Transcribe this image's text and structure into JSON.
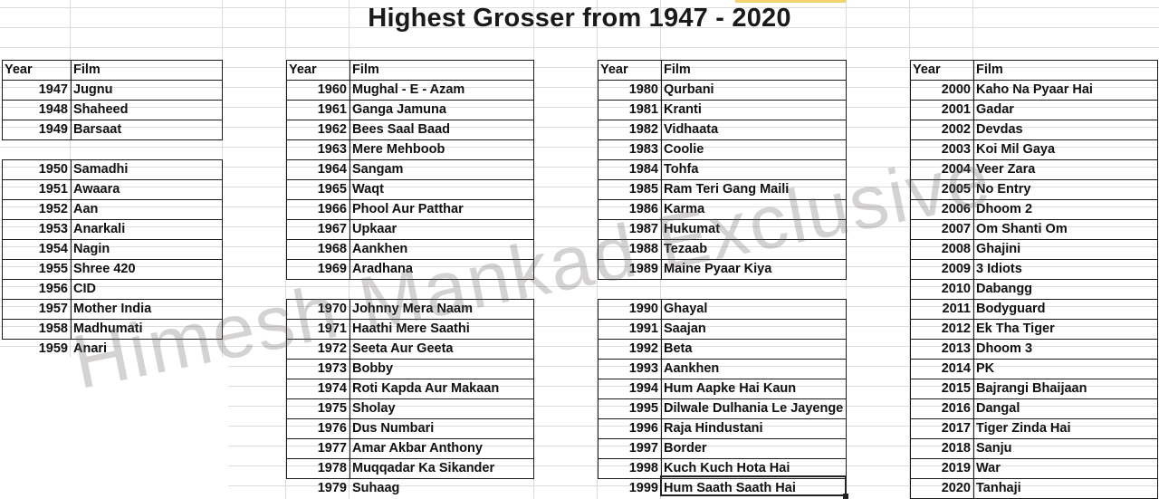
{
  "title": "Highest Grosser from 1947 - 2020",
  "watermark": "Himesh Mankad Exclusive",
  "columns": [
    {
      "header": {
        "year": "Year",
        "film": "Film"
      },
      "rows": [
        {
          "year": "1947",
          "film": "Jugnu"
        },
        {
          "year": "1948",
          "film": "Shaheed"
        },
        {
          "year": "1949",
          "film": "Barsaat"
        },
        {
          "year": "",
          "film": ""
        },
        {
          "year": "1950",
          "film": "Samadhi"
        },
        {
          "year": "1951",
          "film": "Awaara"
        },
        {
          "year": "1952",
          "film": "Aan"
        },
        {
          "year": "1953",
          "film": "Anarkali"
        },
        {
          "year": "1954",
          "film": "Nagin"
        },
        {
          "year": "1955",
          "film": "Shree 420"
        },
        {
          "year": "1956",
          "film": "CID"
        },
        {
          "year": "1957",
          "film": "Mother India"
        },
        {
          "year": "1958",
          "film": "Madhumati"
        },
        {
          "year": "1959",
          "film": "Anari"
        }
      ]
    },
    {
      "header": {
        "year": "Year",
        "film": "Film"
      },
      "rows": [
        {
          "year": "1960",
          "film": "Mughal - E - Azam"
        },
        {
          "year": "1961",
          "film": "Ganga Jamuna"
        },
        {
          "year": "1962",
          "film": "Bees Saal Baad"
        },
        {
          "year": "1963",
          "film": "Mere Mehboob"
        },
        {
          "year": "1964",
          "film": "Sangam"
        },
        {
          "year": "1965",
          "film": "Waqt"
        },
        {
          "year": "1966",
          "film": "Phool Aur Patthar"
        },
        {
          "year": "1967",
          "film": "Upkaar"
        },
        {
          "year": "1968",
          "film": "Aankhen"
        },
        {
          "year": "1969",
          "film": "Aradhana"
        },
        {
          "year": "",
          "film": ""
        },
        {
          "year": "1970",
          "film": "Johnny Mera Naam"
        },
        {
          "year": "1971",
          "film": "Haathi Mere Saathi"
        },
        {
          "year": "1972",
          "film": "Seeta Aur Geeta"
        },
        {
          "year": "1973",
          "film": "Bobby"
        },
        {
          "year": "1974",
          "film": "Roti Kapda Aur Makaan"
        },
        {
          "year": "1975",
          "film": "Sholay"
        },
        {
          "year": "1976",
          "film": "Dus Numbari"
        },
        {
          "year": "1977",
          "film": "Amar Akbar Anthony"
        },
        {
          "year": "1978",
          "film": "Muqqadar Ka Sikander"
        },
        {
          "year": "1979",
          "film": "Suhaag"
        }
      ]
    },
    {
      "header": {
        "year": "Year",
        "film": "Film"
      },
      "rows": [
        {
          "year": "1980",
          "film": "Qurbani"
        },
        {
          "year": "1981",
          "film": "Kranti"
        },
        {
          "year": "1982",
          "film": "Vidhaata"
        },
        {
          "year": "1983",
          "film": "Coolie"
        },
        {
          "year": "1984",
          "film": "Tohfa"
        },
        {
          "year": "1985",
          "film": "Ram Teri Gang Maili"
        },
        {
          "year": "1986",
          "film": "Karma"
        },
        {
          "year": "1987",
          "film": "Hukumat"
        },
        {
          "year": "1988",
          "film": "Tezaab"
        },
        {
          "year": "1989",
          "film": "Maine Pyaar Kiya"
        },
        {
          "year": "",
          "film": ""
        },
        {
          "year": "1990",
          "film": "Ghayal"
        },
        {
          "year": "1991",
          "film": "Saajan"
        },
        {
          "year": "1992",
          "film": "Beta"
        },
        {
          "year": "1993",
          "film": "Aankhen"
        },
        {
          "year": "1994",
          "film": "Hum Aapke Hai Kaun"
        },
        {
          "year": "1995",
          "film": "Dilwale Dulhania Le Jayenge"
        },
        {
          "year": "1996",
          "film": "Raja Hindustani"
        },
        {
          "year": "1997",
          "film": "Border"
        },
        {
          "year": "1998",
          "film": "Kuch Kuch Hota Hai"
        },
        {
          "year": "1999",
          "film": "Hum Saath Saath Hai"
        }
      ]
    },
    {
      "header": {
        "year": "Year",
        "film": "Film"
      },
      "rows": [
        {
          "year": "2000",
          "film": "Kaho Na Pyaar Hai"
        },
        {
          "year": "2001",
          "film": "Gadar"
        },
        {
          "year": "2002",
          "film": "Devdas"
        },
        {
          "year": "2003",
          "film": "Koi Mil Gaya"
        },
        {
          "year": "2004",
          "film": "Veer Zara"
        },
        {
          "year": "2005",
          "film": "No Entry"
        },
        {
          "year": "2006",
          "film": "Dhoom 2"
        },
        {
          "year": "2007",
          "film": "Om Shanti Om"
        },
        {
          "year": "2008",
          "film": "Ghajini"
        },
        {
          "year": "2009",
          "film": "3 Idiots"
        },
        {
          "year": "2010",
          "film": "Dabangg"
        },
        {
          "year": "2011",
          "film": "Bodyguard"
        },
        {
          "year": "2012",
          "film": "Ek Tha Tiger"
        },
        {
          "year": "2013",
          "film": "Dhoom 3"
        },
        {
          "year": "2014",
          "film": "PK"
        },
        {
          "year": "2015",
          "film": "Bajrangi Bhaijaan"
        },
        {
          "year": "2016",
          "film": "Dangal"
        },
        {
          "year": "2017",
          "film": "Tiger Zinda Hai"
        },
        {
          "year": "2018",
          "film": "Sanju"
        },
        {
          "year": "2019",
          "film": "War"
        },
        {
          "year": "2020",
          "film": "Tanhaji"
        }
      ]
    }
  ]
}
